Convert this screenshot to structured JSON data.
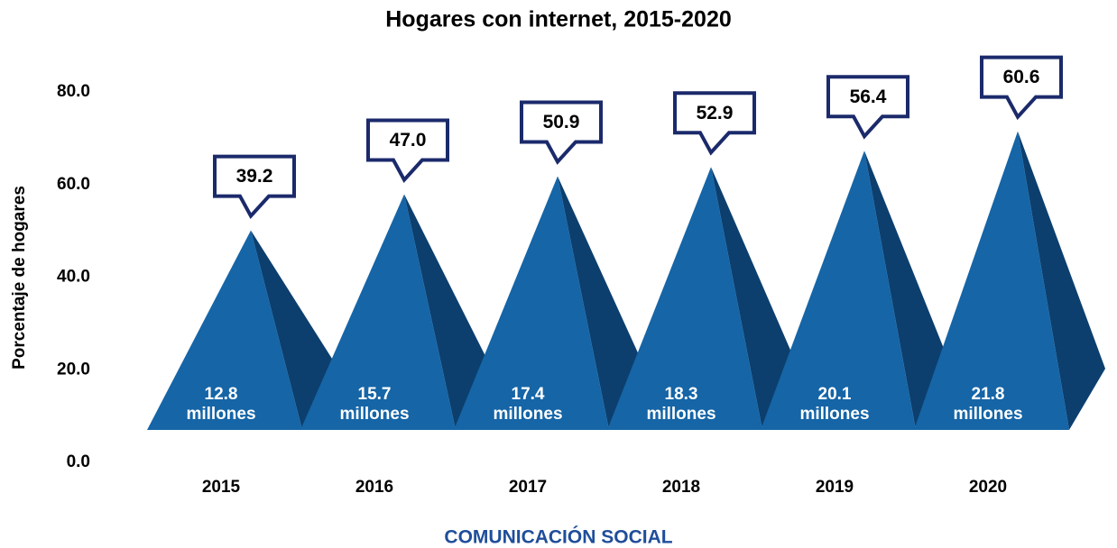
{
  "chart_data": {
    "type": "pyramid",
    "title": "Hogares con internet, 2015-2020",
    "y_label": "Porcentaje de hogares",
    "footer": "COMUNICACIÓN SOCIAL",
    "categories": [
      "2015",
      "2016",
      "2017",
      "2018",
      "2019",
      "2020"
    ],
    "values": [
      39.2,
      47.0,
      50.9,
      52.9,
      56.4,
      60.6
    ],
    "value_labels": [
      "39.2",
      "47.0",
      "50.9",
      "52.9",
      "56.4",
      "60.6"
    ],
    "annotations": [
      "12.8 millones",
      "15.7 millones",
      "17.4 millones",
      "18.3 millones",
      "20.1 millones",
      "21.8 millones"
    ],
    "color": "#1565a7",
    "side_color": "#0c3f6e",
    "ylim": [
      0,
      80
    ],
    "yticks": [
      {
        "value": 0,
        "label": "0.0"
      },
      {
        "value": 20,
        "label": "20.0"
      },
      {
        "value": 40,
        "label": "40.0"
      },
      {
        "value": 60,
        "label": "60.0"
      },
      {
        "value": 80,
        "label": "80.0"
      }
    ]
  }
}
